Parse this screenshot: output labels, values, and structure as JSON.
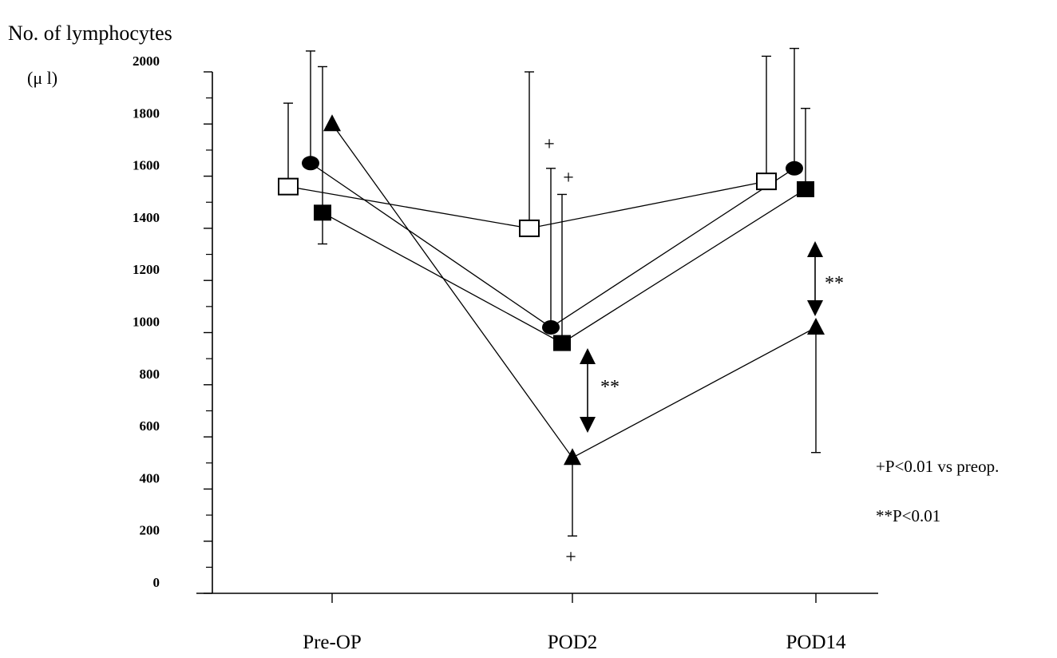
{
  "chart_data": {
    "type": "line",
    "ylabel": "No. of lymphocytes",
    "yunit": "(μ l)",
    "ylim": [
      0,
      2000
    ],
    "yticks": [
      "0",
      "200",
      "400",
      "600",
      "800",
      "1000",
      "1200",
      "1400",
      "1600",
      "1800",
      "2000"
    ],
    "categories": [
      "Pre-OP",
      "POD2",
      "POD14"
    ],
    "series": [
      {
        "marker": "open-square",
        "values": [
          1560,
          1400,
          1580
        ],
        "err_up": [
          1880,
          2000,
          2060
        ]
      },
      {
        "marker": "filled-circle",
        "values": [
          1650,
          1020,
          1630
        ],
        "err_up": [
          2080,
          1630,
          2090
        ]
      },
      {
        "marker": "filled-square",
        "values": [
          1460,
          960,
          1550
        ],
        "err_up": [
          2020,
          1530,
          1860
        ],
        "err_down": [
          1340,
          null,
          null
        ]
      },
      {
        "marker": "filled-triangle",
        "values": [
          1800,
          520,
          1020
        ],
        "err_up": [
          null,
          null,
          null
        ],
        "err_down": [
          null,
          220,
          540
        ]
      }
    ],
    "annotations": {
      "plus": "+",
      "double_star": "**",
      "note1": "+P<0.01 vs preop.",
      "note2": "**P<0.01"
    },
    "grid": false,
    "legend": "none"
  }
}
